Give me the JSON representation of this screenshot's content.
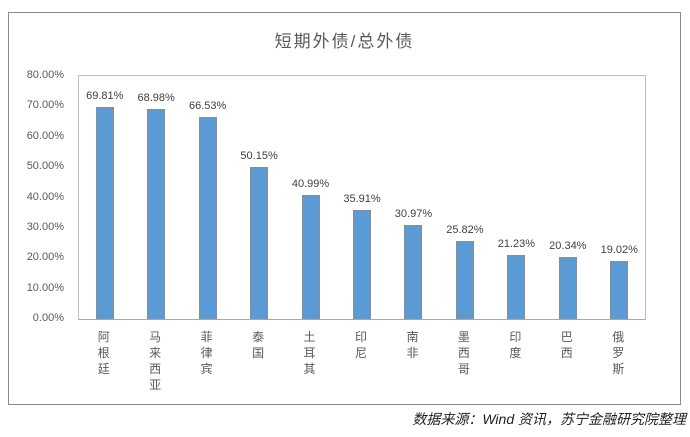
{
  "chart_data": {
    "type": "bar",
    "title": "短期外债/总外债",
    "categories": [
      "阿根廷",
      "马来西亚",
      "菲律宾",
      "泰国",
      "土耳其",
      "印尼",
      "南非",
      "墨西哥",
      "印度",
      "巴西",
      "俄罗斯"
    ],
    "values": [
      69.81,
      68.98,
      66.53,
      50.15,
      40.99,
      35.91,
      30.97,
      25.82,
      21.23,
      20.34,
      19.02
    ],
    "value_labels": [
      "69.81%",
      "68.98%",
      "66.53%",
      "50.15%",
      "40.99%",
      "35.91%",
      "30.97%",
      "25.82%",
      "21.23%",
      "20.34%",
      "19.02%"
    ],
    "y_ticks": [
      "80.00%",
      "70.00%",
      "60.00%",
      "50.00%",
      "40.00%",
      "30.00%",
      "20.00%",
      "10.00%",
      "0.00%"
    ],
    "ylim": [
      0,
      80
    ],
    "grid": false,
    "legend": "none",
    "bar_color": "#5B9BD5",
    "bar_border_color": "#8c8c8c"
  },
  "footer": {
    "source_text": "数据来源：Wind 资讯，苏宁金融研究院整理"
  },
  "colors": {
    "title_text": "#595959",
    "axis_text": "#595959",
    "data_label_text": "#404040",
    "chart_border": "#8a8a8a",
    "plot_border": "#bfbfbf"
  }
}
